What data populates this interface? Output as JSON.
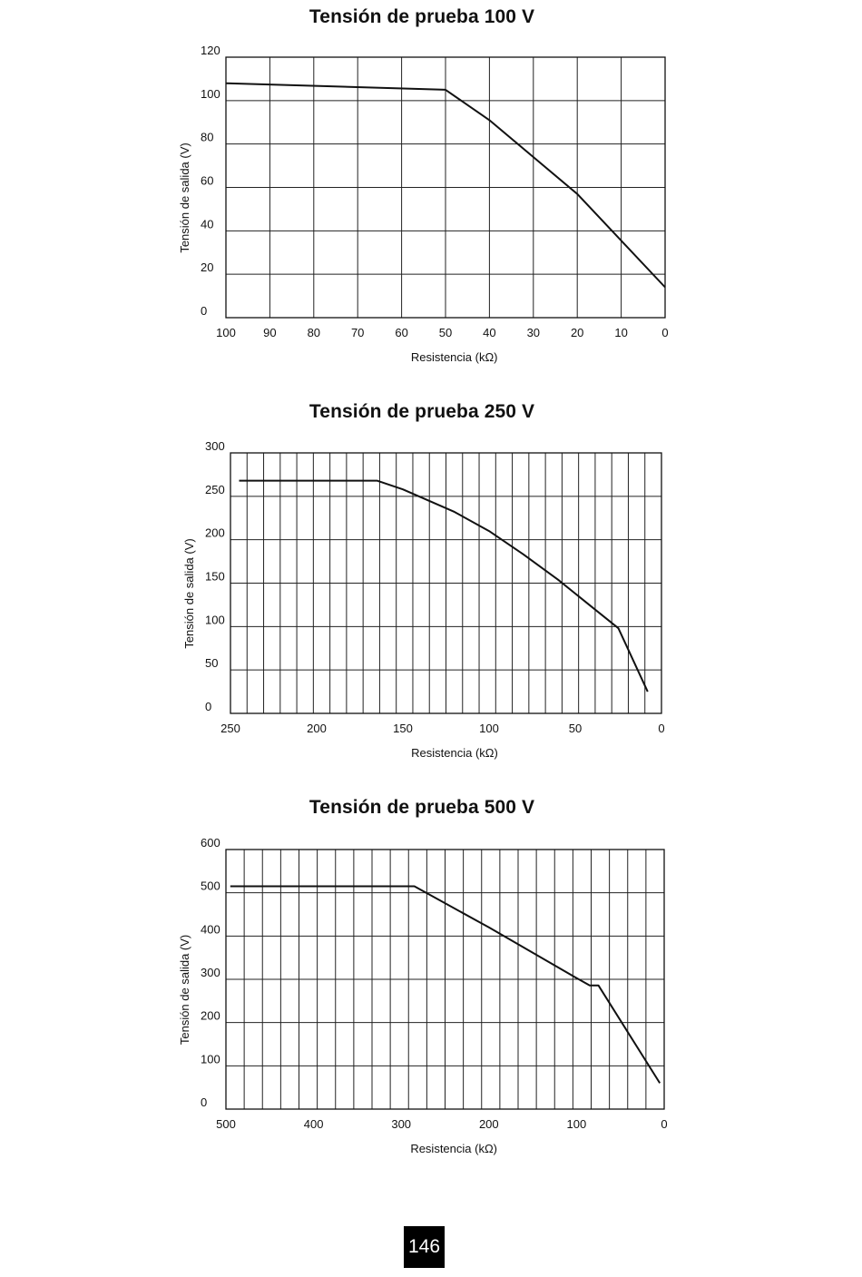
{
  "chart_data": [
    {
      "type": "line",
      "title": "Tensión de prueba 100 V",
      "xlabel": "Resistencia (kΩ)",
      "ylabel": "Tensión de salida (V)",
      "xlim": [
        100,
        0
      ],
      "x_reversed": true,
      "ylim": [
        0,
        120
      ],
      "grid": true,
      "x_ticks": [
        "100",
        "90",
        "80",
        "70",
        "60",
        "50",
        "40",
        "30",
        "20",
        "10",
        "0"
      ],
      "y_ticks": [
        "120",
        "100",
        "80",
        "60",
        "40",
        "20",
        "0"
      ],
      "series": [
        {
          "x": [
            100,
            50,
            40,
            20,
            0
          ],
          "y": [
            108,
            105,
            91,
            57,
            14
          ]
        }
      ]
    },
    {
      "type": "line",
      "title": "Tensión de prueba 250 V",
      "xlabel": "Resistencia (kΩ)",
      "ylabel": "Tensión de salida (V)",
      "xlim": [
        250,
        0
      ],
      "x_reversed": true,
      "ylim": [
        0,
        300
      ],
      "grid": true,
      "x_ticks": [
        "250",
        "200",
        "150",
        "100",
        "50",
        "0"
      ],
      "y_ticks": [
        "300",
        "250",
        "200",
        "150",
        "100",
        "50",
        "0"
      ],
      "series": [
        {
          "x": [
            245,
            165,
            150,
            120,
            100,
            80,
            60,
            40,
            25,
            8
          ],
          "y": [
            268,
            268,
            258,
            232,
            210,
            183,
            154,
            122,
            98,
            25
          ]
        }
      ]
    },
    {
      "type": "line",
      "title": "Tensión de prueba 500 V",
      "xlabel": "Resistencia (kΩ)",
      "ylabel": "Tensión de salida (V)",
      "xlim": [
        500,
        0
      ],
      "x_reversed": true,
      "ylim": [
        0,
        600
      ],
      "grid": true,
      "x_ticks": [
        "500",
        "400",
        "300",
        "200",
        "100",
        "0"
      ],
      "y_ticks": [
        "600",
        "500",
        "400",
        "300",
        "200",
        "100",
        "0"
      ],
      "series": [
        {
          "x": [
            495,
            285,
            200,
            100,
            85,
            75,
            5
          ],
          "y": [
            515,
            515,
            420,
            303,
            286,
            286,
            60
          ]
        }
      ]
    }
  ],
  "page_number": "146"
}
